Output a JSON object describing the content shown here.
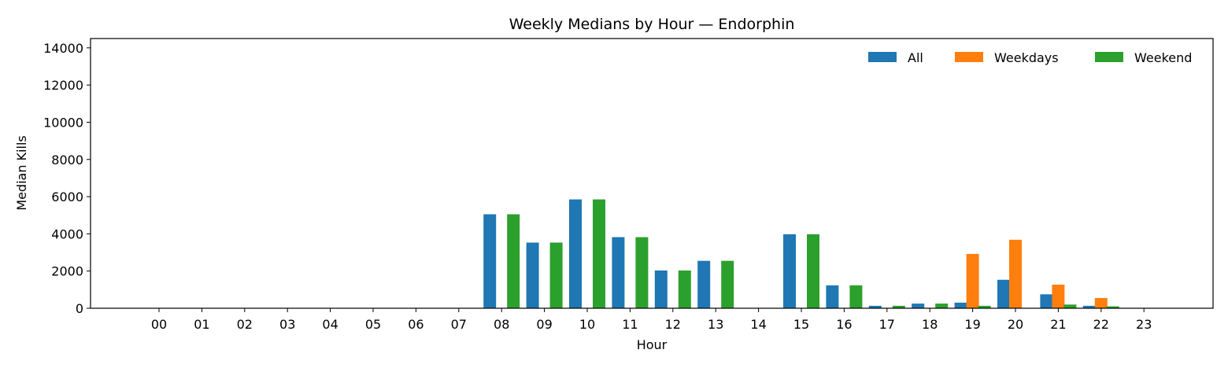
{
  "chart_data": {
    "type": "bar",
    "title": "Weekly Medians by Hour — Endorphin",
    "xlabel": "Hour",
    "ylabel": "Median Kills",
    "ylim": [
      0,
      14500
    ],
    "yticks": [
      0,
      2000,
      4000,
      6000,
      8000,
      10000,
      12000,
      14000
    ],
    "grid": false,
    "legend_position": "top-right",
    "categories": [
      "00",
      "01",
      "02",
      "03",
      "04",
      "05",
      "06",
      "07",
      "08",
      "09",
      "10",
      "11",
      "12",
      "13",
      "14",
      "15",
      "16",
      "17",
      "18",
      "19",
      "20",
      "21",
      "22",
      "23"
    ],
    "series": [
      {
        "name": "All",
        "color": "#1f77b4",
        "values": [
          0,
          0,
          0,
          0,
          0,
          0,
          0,
          0,
          5050,
          3530,
          5850,
          3820,
          2030,
          2550,
          0,
          3980,
          1230,
          130,
          250,
          300,
          1530,
          750,
          130,
          0
        ]
      },
      {
        "name": "Weekdays",
        "color": "#ff7f0e",
        "values": [
          0,
          0,
          0,
          0,
          0,
          0,
          0,
          0,
          0,
          0,
          0,
          0,
          0,
          0,
          0,
          0,
          0,
          0,
          0,
          2920,
          3680,
          1270,
          550,
          0
        ]
      },
      {
        "name": "Weekend",
        "color": "#2ca02c",
        "values": [
          0,
          0,
          0,
          0,
          0,
          0,
          0,
          0,
          5050,
          3530,
          5850,
          3820,
          2030,
          2550,
          0,
          3980,
          1230,
          130,
          250,
          130,
          0,
          200,
          100,
          0
        ]
      }
    ]
  }
}
